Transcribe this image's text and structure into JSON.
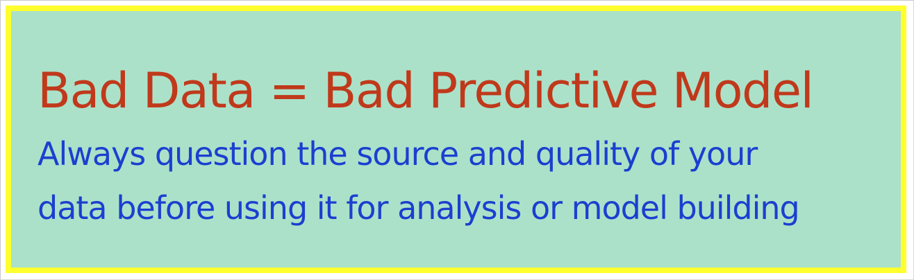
{
  "slide": {
    "headline": "Bad Data = Bad Predictive Model",
    "subtext_lines": [
      "Always question the source and quality of your",
      "data before using it for analysis or model building"
    ]
  },
  "colors": {
    "border": "#ffff2e",
    "background": "#abe1c9",
    "headline": "#c0391b",
    "subtext": "#1b3fd0"
  }
}
